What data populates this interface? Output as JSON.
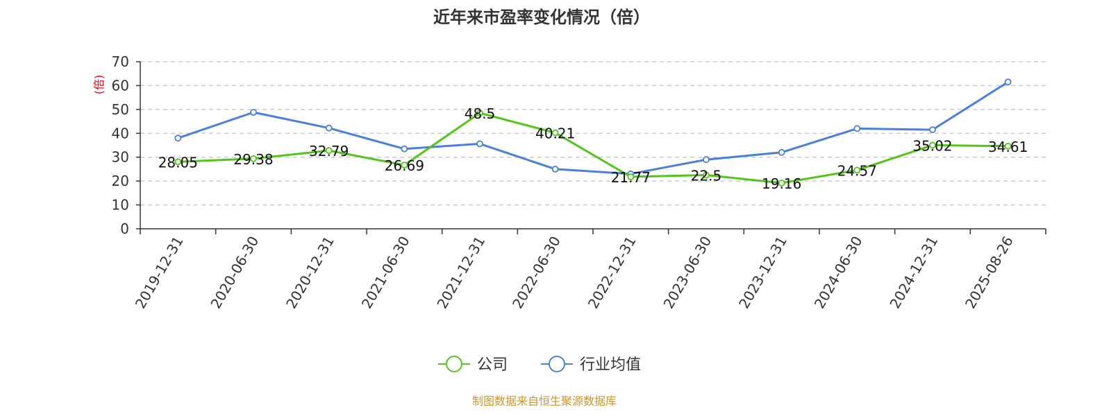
{
  "chart_data": {
    "type": "line",
    "title": "近年来市盈率变化情况（倍）",
    "ylabel": "(倍)",
    "xlabel": "",
    "ylim": [
      0,
      70
    ],
    "yticks": [
      0,
      10,
      20,
      30,
      40,
      50,
      60,
      70
    ],
    "grid": true,
    "legend_position": "bottom",
    "categories": [
      "2019-12-31",
      "2020-06-30",
      "2020-12-31",
      "2021-06-30",
      "2021-12-31",
      "2022-06-30",
      "2022-12-31",
      "2023-06-30",
      "2023-12-31",
      "2024-06-30",
      "2024-12-31",
      "2025-08-26"
    ],
    "series": [
      {
        "name": "公司",
        "color": "#52c41a",
        "values": [
          28.05,
          29.38,
          32.79,
          26.69,
          48.5,
          40.21,
          21.77,
          22.5,
          19.16,
          24.57,
          35.02,
          34.61
        ],
        "labels": [
          "28.05",
          "29.38",
          "32.79",
          "26.69",
          "48.5",
          "40.21",
          "21.77",
          "22.5",
          "19.16",
          "24.57",
          "35.02",
          "34.61"
        ]
      },
      {
        "name": "行业均值",
        "color": "#4a7fdc",
        "values": [
          38.0,
          48.8,
          42.2,
          33.5,
          35.6,
          25.0,
          23.0,
          29.0,
          32.0,
          42.0,
          41.5,
          61.5
        ]
      }
    ],
    "source": "制图数据来自恒生聚源数据库"
  }
}
